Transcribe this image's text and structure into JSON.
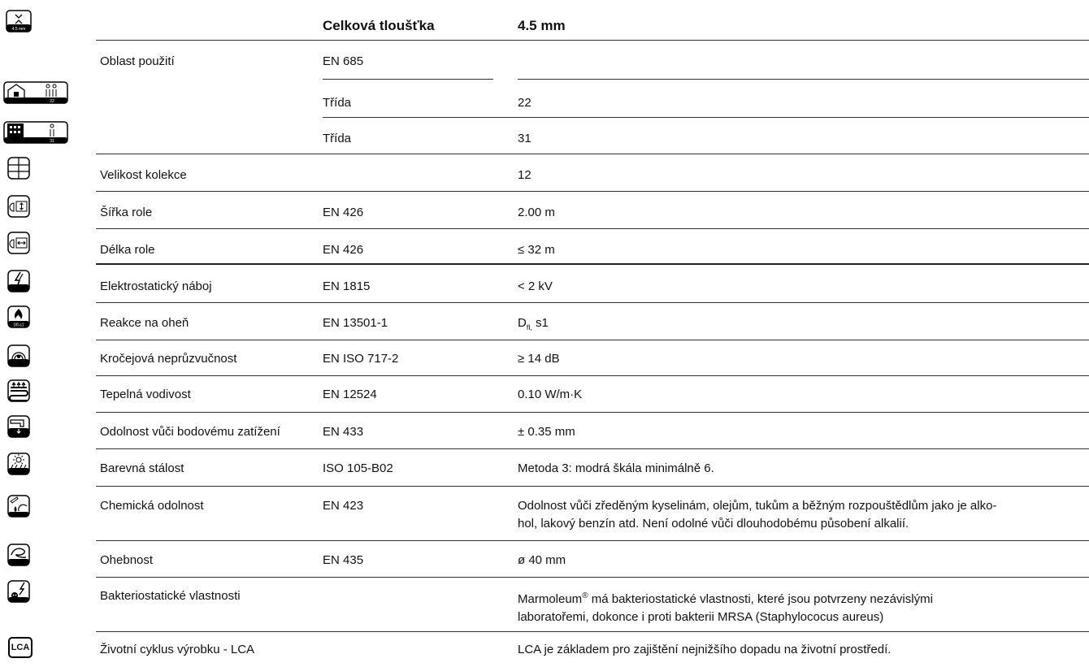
{
  "header": {
    "col2": "Celková tloušťka",
    "col3": "4.5 mm",
    "icon": "thickness-icon",
    "icon_text": "4.5 mm"
  },
  "rows": [
    {
      "label": "Oblast použití",
      "norm": "EN 685",
      "value": "",
      "icon": ""
    },
    {
      "label": "",
      "norm": "Třída",
      "value": "22",
      "icon": "home-use-class-icon",
      "icon_text": "22"
    },
    {
      "label": "",
      "norm": "Třída",
      "value": "31",
      "icon": "commercial-use-class-icon",
      "icon_text": "31"
    },
    {
      "label": "Velikost kolekce",
      "norm": "",
      "value": "12",
      "icon": "collection-grid-icon"
    },
    {
      "label": "Šířka role",
      "norm": "EN 426",
      "value": "2.00 m",
      "icon": "roll-width-icon"
    },
    {
      "label": "Délka role",
      "norm": "EN 426",
      "value": "≤ 32 m",
      "icon": "roll-length-icon"
    },
    {
      "label": "Elektrostatický náboj",
      "norm": "EN 1815",
      "value": "< 2 kV",
      "icon": "electrostatic-icon"
    },
    {
      "label": "Reakce na oheň",
      "norm": "EN 13501-1",
      "value_main": "D",
      "value_sub": "fl,",
      "value_rest": "s1",
      "icon": "fire-reaction-icon",
      "icon_text": "Dfl-s1"
    },
    {
      "label": "Kročejová neprůzvučnost",
      "norm": "EN ISO 717-2",
      "value": "≥ 14 dB",
      "icon": "impact-sound-icon"
    },
    {
      "label": "Tepelná vodivost",
      "norm": "EN 12524",
      "value": "0.10 W/m·K",
      "icon": "thermal-conductivity-icon"
    },
    {
      "label": "Odolnost vůči bodovému zatížení",
      "norm": "EN 433",
      "value": "± 0.35 mm",
      "icon": "point-load-icon"
    },
    {
      "label": "Barevná stálost",
      "norm": "ISO 105-B02",
      "value": "Metoda 3: modrá škála minimálně 6.",
      "icon": "colour-fastness-icon"
    },
    {
      "label": "Chemická odolnost",
      "norm": "EN 423",
      "value": "Odolnost vůči zředěným kyselinám, olejům, tukům a běžným rozpouštědlům jako je alko-hol, lakový benzín atd. Není odolné vůči dlouhodobému působení alkalií.",
      "value_l1": "Odolnost vůči zředěným kyselinám, olejům, tukům a běžným rozpouštědlům jako je alko-",
      "value_l2": "hol, lakový benzín atd. Není odolné vůči dlouhodobému působení alkalií.",
      "icon": "chemical-resistance-icon"
    },
    {
      "label": "Ohebnost",
      "norm": "EN 435",
      "value": "ø 40 mm",
      "icon": "flexibility-icon"
    },
    {
      "label": "Bakteriostatické vlastnosti",
      "norm": "",
      "value_pre": "Marmoleum",
      "value_sup": "®",
      "value_l1": " má bakteriostatické vlastnosti, které jsou potvrzeny nezávislými",
      "value_l2": "laboratořemi, dokonce i proti bakterii MRSA (Staphylococus aureus)",
      "icon": "bacteriostatic-icon"
    },
    {
      "label": "Životní cyklus výrobku - LCA",
      "norm": "",
      "value": "LCA je základem pro zajištění nejnižšího dopadu na životní prostředí.",
      "icon": "lca-icon",
      "icon_text": "LCA"
    }
  ]
}
